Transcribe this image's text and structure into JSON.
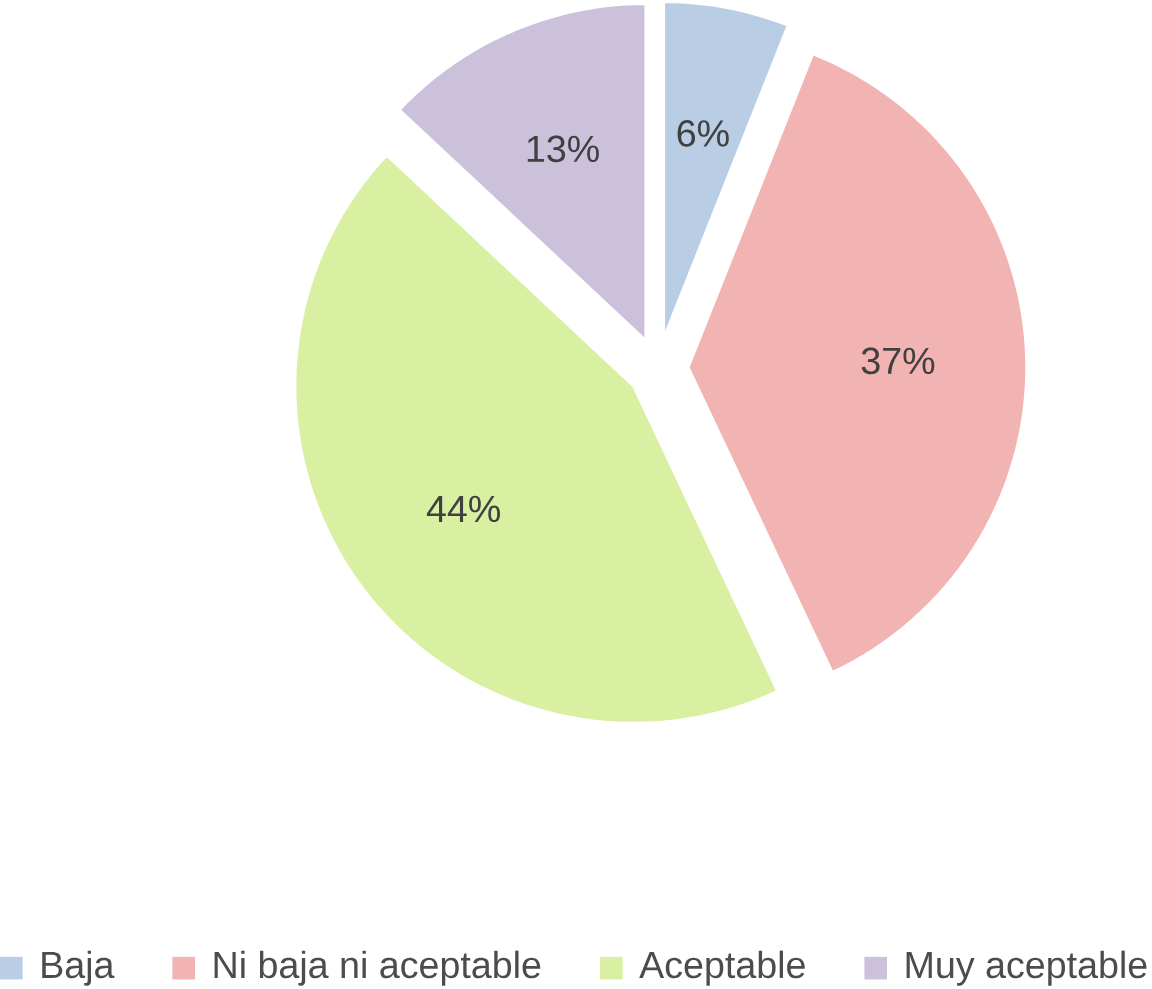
{
  "chart_data": {
    "type": "pie",
    "categories": [
      "Baja",
      "Ni baja ni aceptable",
      "Aceptable",
      "Muy aceptable"
    ],
    "values": [
      6,
      37,
      44,
      13
    ],
    "value_labels": [
      "6%",
      "37%",
      "44%",
      "13%"
    ],
    "colors": [
      "#b9cde5",
      "#f2b3b3",
      "#d9f0a3",
      "#ccc1da"
    ],
    "legend": "bottom"
  }
}
